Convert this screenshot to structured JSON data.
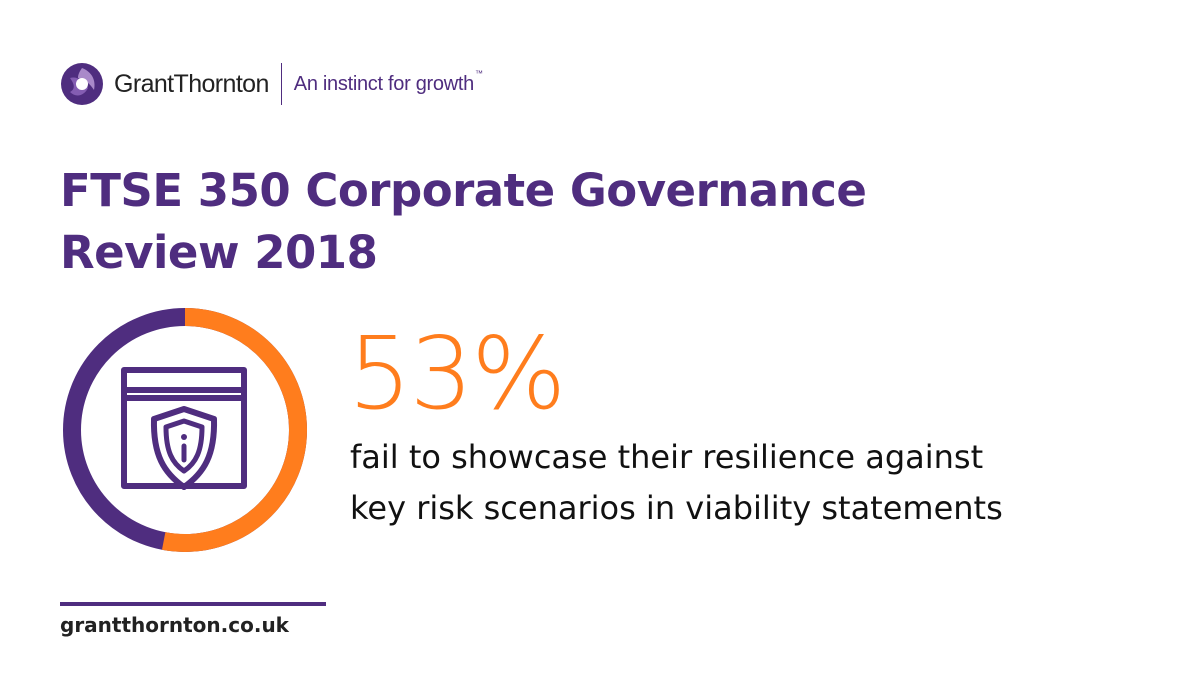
{
  "header": {
    "brand_name": "GrantThornton",
    "tagline": "An instinct for growth",
    "tagline_mark": "™"
  },
  "title": {
    "line1": "FTSE 350 Corporate Governance",
    "line2": "Review 2018"
  },
  "stat": {
    "value": "53%",
    "fraction": 0.53,
    "line1": "fail to showcase their resilience against",
    "line2": "key risk scenarios in viability statements"
  },
  "footer": {
    "url": "grantthornton.co.uk"
  },
  "colors": {
    "purple": "#4f2d7f",
    "orange": "#ff7d1d",
    "text": "#111111"
  },
  "icons": [
    "grant-thornton-logo-icon",
    "browser-shield-icon"
  ]
}
